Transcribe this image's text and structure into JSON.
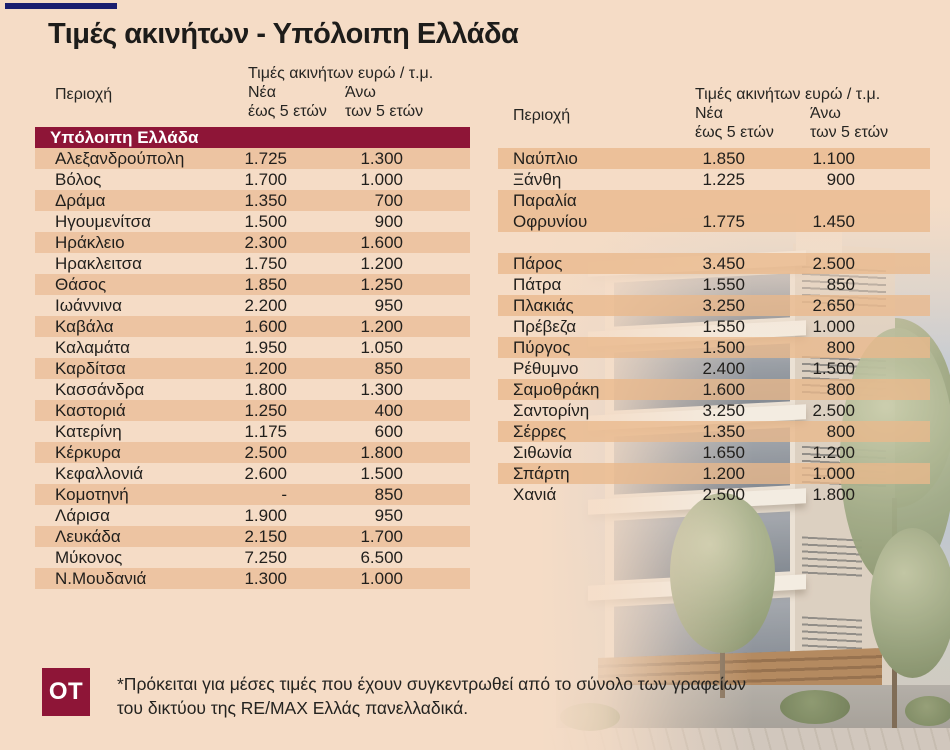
{
  "title": "Τιμές ακινήτων - Υπόλοιπη Ελλάδα",
  "colors": {
    "background": "#f5dcc6",
    "stripe": "#edc4a2",
    "maroon": "#8e1537",
    "navy_accent": "#1a1e6e",
    "text": "#211f1c"
  },
  "table_header": {
    "region": "Περιοχή",
    "group": "Τιμές ακινήτων ευρώ / τ.μ.",
    "col_new_line1": "Νέα",
    "col_new_line2": "έως 5 ετών",
    "col_old_line1": "Άνω",
    "col_old_line2": "των 5 ετών"
  },
  "section_label": "Υπόλοιπη Ελλάδα",
  "chart_data": {
    "type": "table",
    "title": "Τιμές ακινήτων - Υπόλοιπη Ελλάδα",
    "unit_label": "Τιμές ακινήτων ευρώ / τ.μ.",
    "section": "Υπόλοιπη Ελλάδα",
    "columns": [
      "Περιοχή",
      "Νέα έως 5 ετών",
      "Άνω των 5 ετών"
    ],
    "left_table_rows": [
      {
        "region": "Αλεξανδρούπολη",
        "new": "1.725",
        "old": "1.300",
        "striped": true
      },
      {
        "region": "Βόλος",
        "new": "1.700",
        "old": "1.000",
        "striped": false
      },
      {
        "region": "Δράμα",
        "new": "1.350",
        "old": "700",
        "striped": true
      },
      {
        "region": "Ηγουμενίτσα",
        "new": "1.500",
        "old": "900",
        "striped": false
      },
      {
        "region": "Ηράκλειο",
        "new": "2.300",
        "old": "1.600",
        "striped": true
      },
      {
        "region": "Ηρακλειτσα",
        "new": "1.750",
        "old": "1.200",
        "striped": false
      },
      {
        "region": "Θάσος",
        "new": "1.850",
        "old": "1.250",
        "striped": true
      },
      {
        "region": "Ιωάννινα",
        "new": "2.200",
        "old": "950",
        "striped": false
      },
      {
        "region": "Καβάλα",
        "new": "1.600",
        "old": "1.200",
        "striped": true
      },
      {
        "region": "Καλαμάτα",
        "new": "1.950",
        "old": "1.050",
        "striped": false
      },
      {
        "region": "Καρδίτσα",
        "new": "1.200",
        "old": "850",
        "striped": true
      },
      {
        "region": "Κασσάνδρα",
        "new": "1.800",
        "old": "1.300",
        "striped": false
      },
      {
        "region": "Καστοριά",
        "new": "1.250",
        "old": "400",
        "striped": true
      },
      {
        "region": "Κατερίνη",
        "new": "1.175",
        "old": "600",
        "striped": false
      },
      {
        "region": "Κέρκυρα",
        "new": "2.500",
        "old": "1.800",
        "striped": true
      },
      {
        "region": "Κεφαλλονιά",
        "new": "2.600",
        "old": "1.500",
        "striped": false
      },
      {
        "region": "Κομοτηνή",
        "new": "-",
        "old": "850",
        "striped": true
      },
      {
        "region": "Λάρισα",
        "new": "1.900",
        "old": "950",
        "striped": false
      },
      {
        "region": "Λευκάδα",
        "new": "2.150",
        "old": "1.700",
        "striped": true
      },
      {
        "region": "Μύκονος",
        "new": "7.250",
        "old": "6.500",
        "striped": false
      },
      {
        "region": "Ν.Μουδανιά",
        "new": "1.300",
        "old": "1.000",
        "striped": true
      }
    ],
    "right_table_rows": [
      {
        "region": "Ναύπλιο",
        "new": "1.850",
        "old": "1.100",
        "striped": true
      },
      {
        "region": "Ξάνθη",
        "new": "1.225",
        "old": "900",
        "striped": false
      },
      {
        "region": "Παραλία Οφρυνίου",
        "region_lines": [
          "Παραλία",
          "Οφρυνίου"
        ],
        "new": "1.775",
        "old": "1.450",
        "striped": true,
        "tall": true
      },
      {
        "spacer": true
      },
      {
        "region": "Πάρος",
        "new": "3.450",
        "old": "2.500",
        "striped": true
      },
      {
        "region": "Πάτρα",
        "new": "1.550",
        "old": "850",
        "striped": false
      },
      {
        "region": "Πλακιάς",
        "new": "3.250",
        "old": "2.650",
        "striped": true
      },
      {
        "region": "Πρέβεζα",
        "new": "1.550",
        "old": "1.000",
        "striped": false
      },
      {
        "region": "Πύργος",
        "new": "1.500",
        "old": "800",
        "striped": true
      },
      {
        "region": "Ρέθυμνο",
        "new": "2.400",
        "old": "1.500",
        "striped": false
      },
      {
        "region": "Σαμοθράκη",
        "new": "1.600",
        "old": "800",
        "striped": true
      },
      {
        "region": "Σαντορίνη",
        "new": "3.250",
        "old": "2.500",
        "striped": false
      },
      {
        "region": "Σέρρες",
        "new": "1.350",
        "old": "800",
        "striped": true
      },
      {
        "region": "Σιθωνία",
        "new": "1.650",
        "old": "1.200",
        "striped": false
      },
      {
        "region": "Σπάρτη",
        "new": "1.200",
        "old": "1.000",
        "striped": true
      },
      {
        "region": "Χανιά",
        "new": "2.500",
        "old": "1.800",
        "striped": false
      }
    ]
  },
  "footer": {
    "logo": "OT",
    "note": "*Πρόκειται για μέσες τιμές που έχουν συγκεντρωθεί από το σύνολο των γραφείων του δικτύου της RE/MAX Ελλάς πανελλαδικά."
  }
}
